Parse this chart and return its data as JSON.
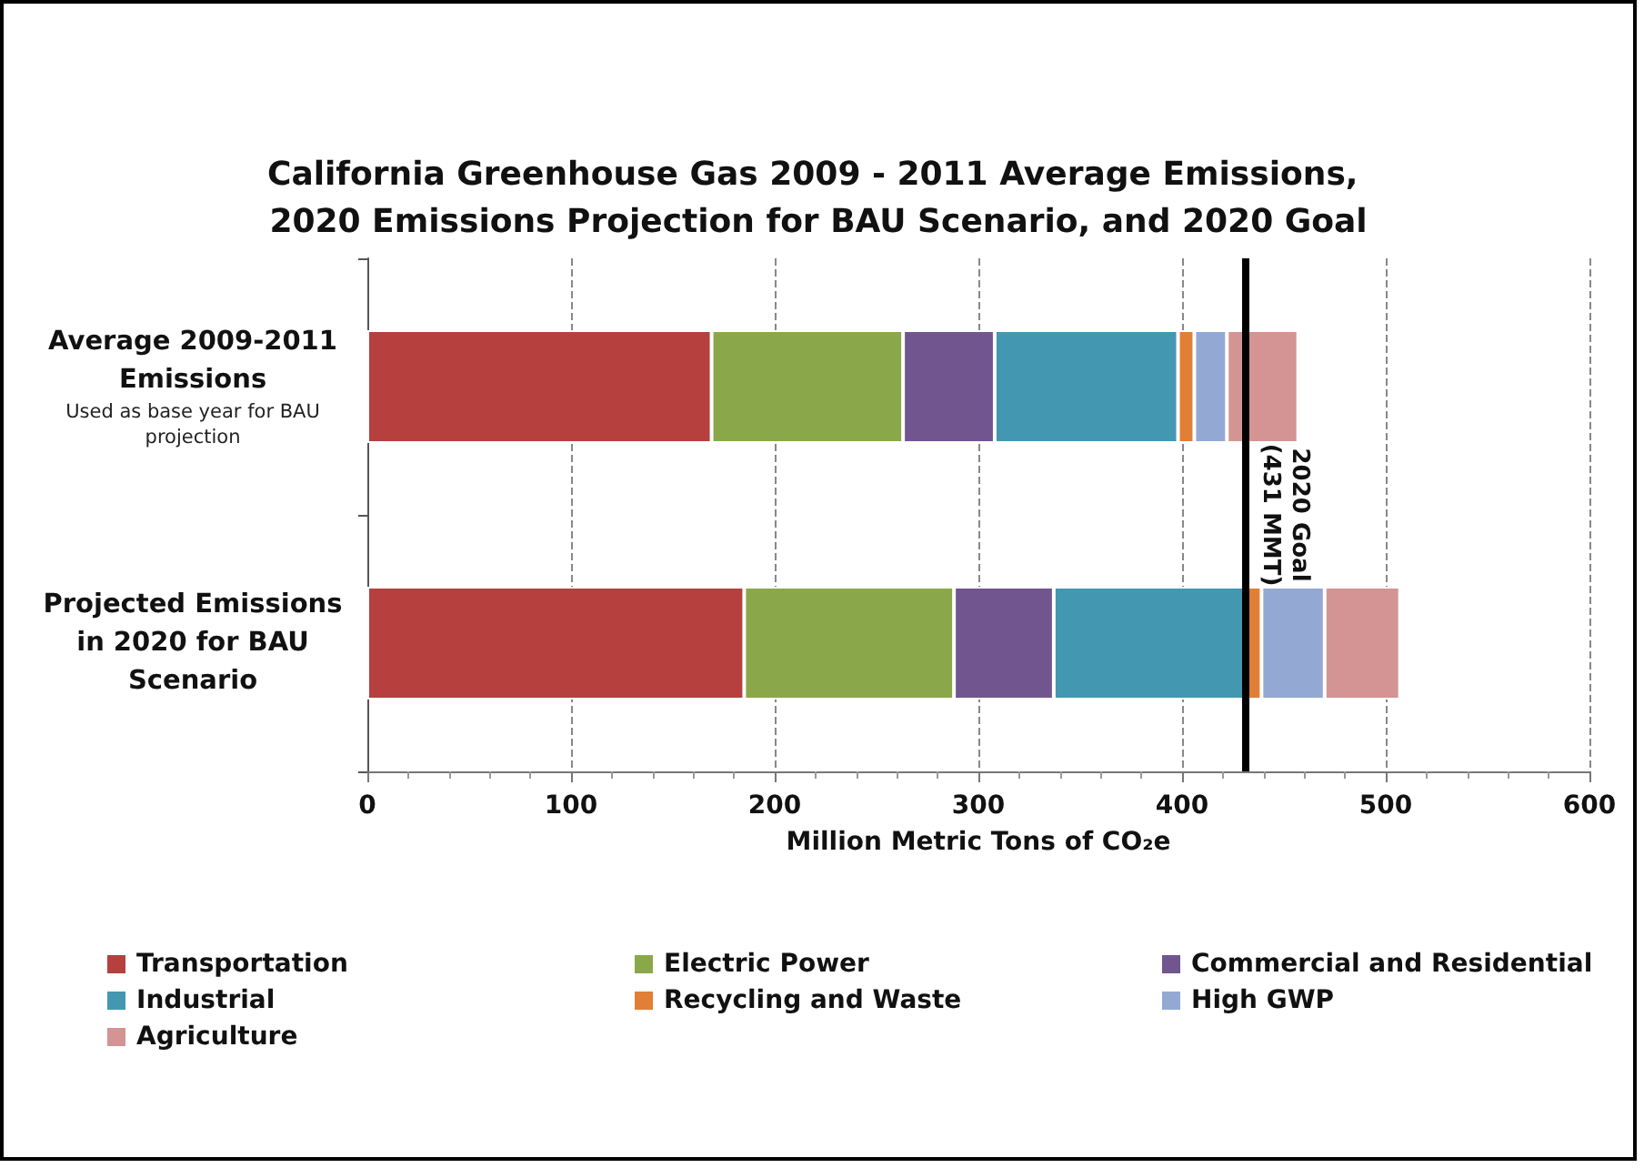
{
  "chart_data": {
    "type": "bar",
    "title": "California Greenhouse Gas 2009 - 2011 Average Emissions, 2020 Emissions Projection for BAU Scenario, and 2020 Goal",
    "orientation": "horizontal",
    "stacked": true,
    "categories": [
      "Average 2009-2011 Emissions",
      "Projected Emissions in 2020 for BAU Scenario"
    ],
    "series": [
      {
        "name": "Transportation",
        "color": "#b5403e",
        "values": [
          169,
          185
        ]
      },
      {
        "name": "Electric Power",
        "color": "#8aa84a",
        "values": [
          94,
          103
        ]
      },
      {
        "name": "Commercial and Residential",
        "color": "#71558f",
        "values": [
          45,
          49
        ]
      },
      {
        "name": "Industrial",
        "color": "#4397b0",
        "values": [
          90,
          94
        ]
      },
      {
        "name": "Recycling and Waste",
        "color": "#e07f35",
        "values": [
          8,
          8
        ]
      },
      {
        "name": "High GWP",
        "color": "#93a9d3",
        "values": [
          16,
          31
        ]
      },
      {
        "name": "Agriculture",
        "color": "#d39493",
        "values": [
          35,
          37
        ]
      }
    ],
    "xlabel": "Million Metric Tons of CO₂e",
    "xlim": [
      0,
      600
    ],
    "xticks": [
      0,
      100,
      200,
      300,
      400,
      500,
      600
    ],
    "grid": "x",
    "legend": "bottom",
    "ref_lines": [
      {
        "axis": "x",
        "value": 431,
        "label": "2020 Goal\n(431 MMT)",
        "color": "#000000"
      }
    ],
    "annotations": [
      "Used as base year for BAU projection"
    ]
  }
}
